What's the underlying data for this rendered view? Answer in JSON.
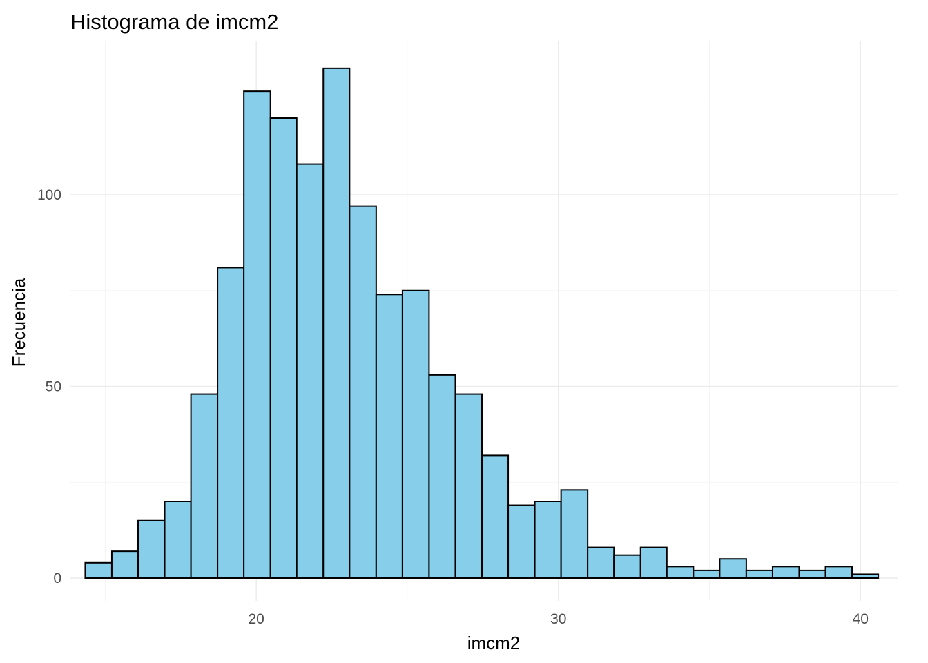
{
  "chart_data": {
    "type": "bar",
    "title": "Histograma de imcm2",
    "xlabel": "imcm2",
    "ylabel": "Frecuencia",
    "xlim": [
      13.85,
      41.25
    ],
    "ylim": [
      0,
      133
    ],
    "x_ticks": [
      20,
      30,
      40
    ],
    "y_ticks": [
      0,
      50,
      100
    ],
    "bin_width": 0.875,
    "bins": [
      {
        "x0": 14.34,
        "x1": 15.22,
        "count": 4
      },
      {
        "x0": 15.22,
        "x1": 16.09,
        "count": 7
      },
      {
        "x0": 16.09,
        "x1": 16.97,
        "count": 15
      },
      {
        "x0": 16.97,
        "x1": 17.84,
        "count": 20
      },
      {
        "x0": 17.84,
        "x1": 18.72,
        "count": 48
      },
      {
        "x0": 18.72,
        "x1": 19.59,
        "count": 81
      },
      {
        "x0": 19.59,
        "x1": 20.47,
        "count": 127
      },
      {
        "x0": 20.47,
        "x1": 21.34,
        "count": 120
      },
      {
        "x0": 21.34,
        "x1": 22.22,
        "count": 108
      },
      {
        "x0": 22.22,
        "x1": 23.09,
        "count": 133
      },
      {
        "x0": 23.09,
        "x1": 23.97,
        "count": 97
      },
      {
        "x0": 23.97,
        "x1": 24.84,
        "count": 74
      },
      {
        "x0": 24.84,
        "x1": 25.72,
        "count": 75
      },
      {
        "x0": 25.72,
        "x1": 26.59,
        "count": 53
      },
      {
        "x0": 26.59,
        "x1": 27.47,
        "count": 48
      },
      {
        "x0": 27.47,
        "x1": 28.34,
        "count": 32
      },
      {
        "x0": 28.34,
        "x1": 29.22,
        "count": 19
      },
      {
        "x0": 29.22,
        "x1": 30.09,
        "count": 20
      },
      {
        "x0": 30.09,
        "x1": 30.97,
        "count": 23
      },
      {
        "x0": 30.97,
        "x1": 31.84,
        "count": 8
      },
      {
        "x0": 31.84,
        "x1": 32.72,
        "count": 6
      },
      {
        "x0": 32.72,
        "x1": 33.59,
        "count": 8
      },
      {
        "x0": 33.59,
        "x1": 34.47,
        "count": 3
      },
      {
        "x0": 34.47,
        "x1": 35.34,
        "count": 2
      },
      {
        "x0": 35.34,
        "x1": 36.22,
        "count": 5
      },
      {
        "x0": 36.22,
        "x1": 37.09,
        "count": 2
      },
      {
        "x0": 37.09,
        "x1": 37.97,
        "count": 3
      },
      {
        "x0": 37.97,
        "x1": 38.84,
        "count": 2
      },
      {
        "x0": 38.84,
        "x1": 39.72,
        "count": 3
      },
      {
        "x0": 39.72,
        "x1": 40.59,
        "count": 1
      }
    ],
    "fill_color": "#87CEEB",
    "border_color": "#000000",
    "grid": true,
    "legend": "none"
  }
}
